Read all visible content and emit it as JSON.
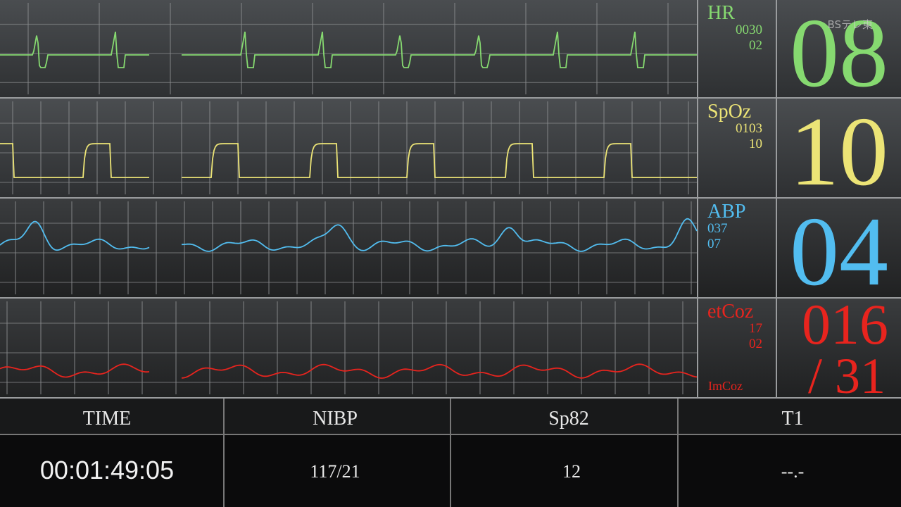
{
  "watermark": "BSテレ東",
  "channels": [
    {
      "label": "HR",
      "readings": [
        "0030",
        "02"
      ],
      "value": "08"
    },
    {
      "label": "SpOz",
      "readings": [
        "0103",
        "10"
      ],
      "value": "10"
    },
    {
      "label": "ABP",
      "readings": [
        "037",
        "07"
      ],
      "value": "04"
    },
    {
      "label": "etCoz",
      "readings": [
        "17",
        "02"
      ],
      "value": "016",
      "value2": "/ 31",
      "footer": "ImCoz"
    }
  ],
  "table": {
    "headers": [
      "TIME",
      "NIBP",
      "Sp82",
      "T1"
    ],
    "cells": [
      "00:01:49:05",
      "117/21",
      "12",
      "--.-"
    ]
  }
}
